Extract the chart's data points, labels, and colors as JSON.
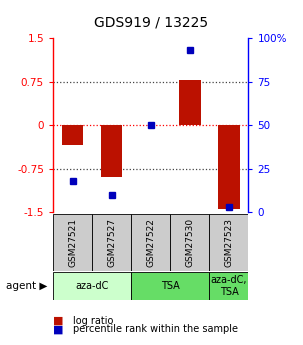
{
  "title": "GDS919 / 13225",
  "samples": [
    "GSM27521",
    "GSM27527",
    "GSM27522",
    "GSM27530",
    "GSM27523"
  ],
  "log_ratios": [
    -0.35,
    -0.9,
    0.0,
    0.78,
    -1.45
  ],
  "percentile_ranks": [
    18,
    10,
    50,
    93,
    3
  ],
  "ylim": [
    -1.5,
    1.5
  ],
  "yticks_left": [
    -1.5,
    -0.75,
    0,
    0.75,
    1.5
  ],
  "yticks_right": [
    0,
    25,
    50,
    75,
    100
  ],
  "bar_color": "#bb1100",
  "dot_color": "#0000bb",
  "background_color": "#ffffff",
  "sample_bg_color": "#cccccc",
  "agent_color_1": "#ccffcc",
  "agent_color_2": "#66dd66",
  "agent_groups": [
    {
      "label": "aza-dC",
      "indices": [
        0,
        1
      ],
      "color_key": "agent_color_1"
    },
    {
      "label": "TSA",
      "indices": [
        2,
        3
      ],
      "color_key": "agent_color_2"
    },
    {
      "label": "aza-dC,\nTSA",
      "indices": [
        4
      ],
      "color_key": "agent_color_2"
    }
  ]
}
